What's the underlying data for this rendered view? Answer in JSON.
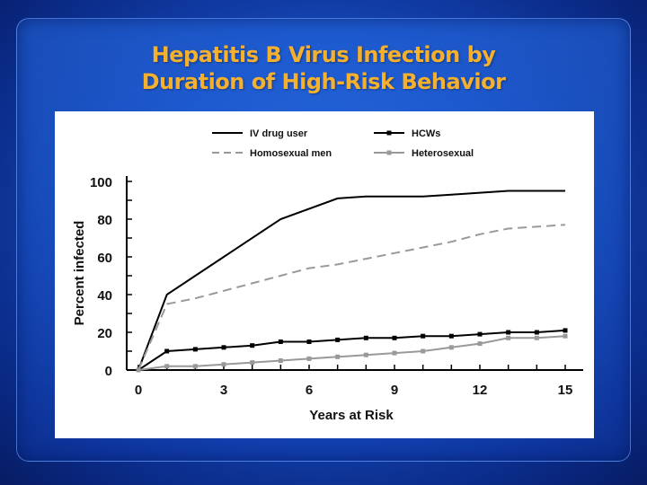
{
  "slide": {
    "title_line1": "Hepatitis B Virus Infection by",
    "title_line2": "Duration of High-Risk Behavior"
  },
  "colors": {
    "title": "#f5b02e",
    "background": "#1547b8",
    "iv_drug_user": "#000000",
    "homosexual_men": "#999999",
    "hcws": "#000000",
    "heterosexual": "#999999"
  },
  "chart_data": {
    "type": "line",
    "xlabel": "Years at Risk",
    "ylabel": "Percent infected",
    "xlim": [
      0,
      15
    ],
    "ylim": [
      0,
      100
    ],
    "xticks": [
      0,
      3,
      6,
      9,
      12,
      15
    ],
    "yticks": [
      0,
      20,
      40,
      60,
      80,
      100
    ],
    "grid": false,
    "legend_position": "top",
    "series": [
      {
        "name": "IV drug user",
        "style": "solid",
        "color": "#000000",
        "markers": false,
        "x": [
          0,
          1,
          3,
          5,
          7,
          8,
          9,
          10,
          11,
          12,
          13,
          14,
          15
        ],
        "y": [
          0,
          40,
          60,
          80,
          91,
          92,
          92,
          92,
          93,
          94,
          95,
          95,
          95
        ]
      },
      {
        "name": "HCWs",
        "style": "solid",
        "color": "#000000",
        "markers": true,
        "x": [
          0,
          1,
          2,
          3,
          4,
          5,
          6,
          7,
          8,
          9,
          10,
          11,
          12,
          13,
          14,
          15
        ],
        "y": [
          0,
          10,
          11,
          12,
          13,
          15,
          15,
          16,
          17,
          17,
          18,
          18,
          19,
          20,
          20,
          21
        ]
      },
      {
        "name": "Homosexual men",
        "style": "dashed",
        "color": "#999999",
        "markers": false,
        "x": [
          0,
          1,
          2,
          3,
          4,
          5,
          6,
          7,
          8,
          9,
          10,
          11,
          12,
          13,
          14,
          15
        ],
        "y": [
          0,
          35,
          38,
          42,
          46,
          50,
          54,
          56,
          59,
          62,
          65,
          68,
          72,
          75,
          76,
          77
        ]
      },
      {
        "name": "Heterosexual",
        "style": "solid",
        "color": "#999999",
        "markers": true,
        "x": [
          0,
          1,
          2,
          3,
          4,
          5,
          6,
          7,
          8,
          9,
          10,
          11,
          12,
          13,
          14,
          15
        ],
        "y": [
          0,
          2,
          2,
          3,
          4,
          5,
          6,
          7,
          8,
          9,
          10,
          12,
          14,
          17,
          17,
          18
        ]
      }
    ]
  }
}
